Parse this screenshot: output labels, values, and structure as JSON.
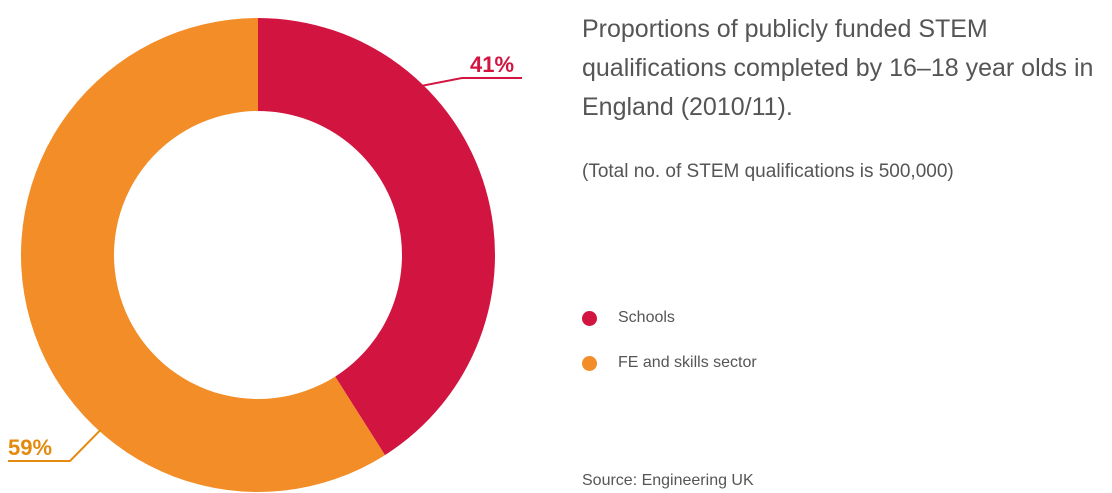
{
  "chart_data": {
    "type": "pie",
    "variant": "donut",
    "title": "Proportions of publicly funded STEM qualifications completed by 16–18 year olds in England (2010/11).",
    "subtitle": "(Total no. of STEM qualifications is 500,000)",
    "source": "Source: Engineering UK",
    "legend_position": "right",
    "slices": [
      {
        "name": "Schools",
        "value": 41,
        "label": "41%",
        "color": "#d11440"
      },
      {
        "name": "FE and skills sector",
        "value": 59,
        "label": "59%",
        "color": "#f28d27"
      }
    ],
    "label_colors": [
      "#d11440",
      "#e48a0e"
    ]
  }
}
